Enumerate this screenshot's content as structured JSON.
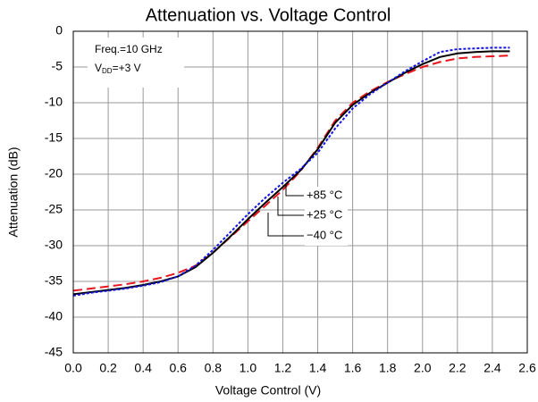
{
  "chart_data": {
    "type": "line",
    "title": "Attenuation vs. Voltage Control",
    "xlabel": "Voltage Control (V)",
    "ylabel": "Attenuation (dB)",
    "x": [
      0,
      0.1,
      0.2,
      0.3,
      0.4,
      0.5,
      0.6,
      0.7,
      0.8,
      0.9,
      1.0,
      1.1,
      1.2,
      1.3,
      1.4,
      1.5,
      1.6,
      1.7,
      1.8,
      1.9,
      2.0,
      2.1,
      2.2,
      2.3,
      2.4,
      2.5
    ],
    "series": [
      {
        "name": "+85 °C",
        "color": "#e8141e",
        "dash": "10,5",
        "values": [
          -36.3,
          -36.0,
          -35.7,
          -35.4,
          -35.0,
          -34.5,
          -33.8,
          -32.8,
          -31.0,
          -28.8,
          -26.6,
          -24.4,
          -22.2,
          -19.6,
          -16.3,
          -12.5,
          -10.0,
          -8.4,
          -7.1,
          -6.0,
          -5.0,
          -4.3,
          -3.8,
          -3.6,
          -3.5,
          -3.4
        ]
      },
      {
        "name": "+25 °C",
        "color": "#000000",
        "dash": "none",
        "values": [
          -36.8,
          -36.5,
          -36.2,
          -35.9,
          -35.5,
          -35.0,
          -34.3,
          -33.0,
          -31.0,
          -28.7,
          -26.3,
          -24.0,
          -21.8,
          -19.5,
          -16.5,
          -12.8,
          -10.3,
          -8.6,
          -7.2,
          -5.8,
          -4.6,
          -3.6,
          -3.1,
          -2.9,
          -2.8,
          -2.8
        ]
      },
      {
        "name": "−40 °C",
        "color": "#1414e0",
        "dash": "3,2",
        "values": [
          -37.0,
          -36.6,
          -36.3,
          -36.0,
          -35.6,
          -35.1,
          -34.3,
          -32.8,
          -30.6,
          -28.1,
          -25.6,
          -23.3,
          -21.2,
          -19.3,
          -17.0,
          -13.6,
          -10.8,
          -8.8,
          -7.2,
          -5.6,
          -4.2,
          -2.9,
          -2.5,
          -2.4,
          -2.3,
          -2.3
        ]
      }
    ],
    "xlim": [
      0,
      2.6
    ],
    "xticks": [
      {
        "value": 0,
        "label": "0.0"
      },
      0.2,
      0.4,
      0.6,
      0.8,
      {
        "value": 1,
        "label": "1.0"
      },
      1.2,
      1.4,
      1.6,
      1.8,
      {
        "value": 2,
        "label": "2.0"
      },
      2.2,
      2.4,
      2.6
    ],
    "ylim": [
      -45,
      0
    ],
    "yticks": [
      0,
      -5,
      -10,
      -15,
      -20,
      -25,
      -30,
      -35,
      -40,
      -45
    ],
    "grid": true,
    "annotations": [
      {
        "text": "Freq.=10 GHz"
      },
      {
        "base": "V",
        "sub": "DD",
        "rest": "=+3 V"
      }
    ]
  }
}
